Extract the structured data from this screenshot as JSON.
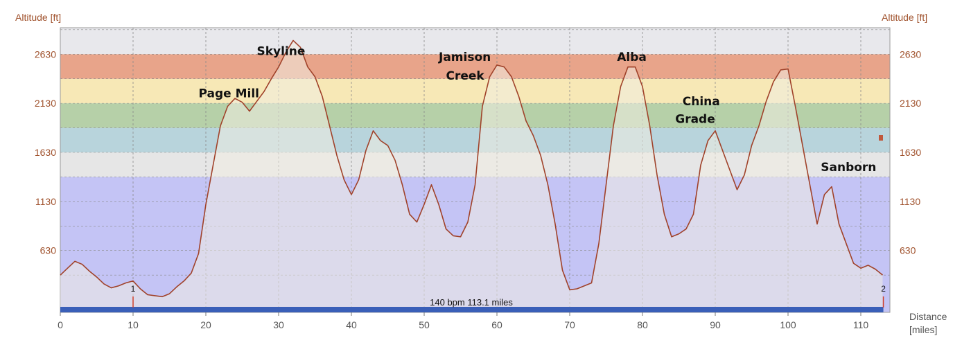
{
  "chart_data": {
    "type": "area",
    "ylabel": "Altitude [ft]",
    "xlabel": "Distance",
    "xlabel_unit": "[miles]",
    "xlim": [
      0,
      114
    ],
    "ylim": [
      0,
      2900
    ],
    "x_ticks": [
      0,
      10,
      20,
      30,
      40,
      50,
      60,
      70,
      80,
      90,
      100,
      110
    ],
    "y_ticks": [
      630,
      1130,
      1630,
      2130,
      2630
    ],
    "grid": true,
    "zones": [
      {
        "from": 0,
        "to": 1380,
        "color": "#c4c4f5"
      },
      {
        "from": 1380,
        "to": 1630,
        "color": "#e6e6e6"
      },
      {
        "from": 1630,
        "to": 1880,
        "color": "#b8d4dc"
      },
      {
        "from": 1880,
        "to": 2130,
        "color": "#b6d0a8"
      },
      {
        "from": 2130,
        "to": 2380,
        "color": "#f7e8b6"
      },
      {
        "from": 2380,
        "to": 2630,
        "color": "#e8a48a"
      },
      {
        "from": 2630,
        "to": 2900,
        "color": "#e8e8ec"
      }
    ],
    "profile": [
      [
        0,
        380
      ],
      [
        1,
        450
      ],
      [
        2,
        520
      ],
      [
        3,
        490
      ],
      [
        4,
        420
      ],
      [
        5,
        360
      ],
      [
        6,
        290
      ],
      [
        7,
        250
      ],
      [
        8,
        270
      ],
      [
        9,
        300
      ],
      [
        10,
        320
      ],
      [
        11,
        240
      ],
      [
        12,
        180
      ],
      [
        13,
        170
      ],
      [
        14,
        160
      ],
      [
        15,
        190
      ],
      [
        16,
        260
      ],
      [
        17,
        320
      ],
      [
        18,
        400
      ],
      [
        19,
        600
      ],
      [
        20,
        1100
      ],
      [
        21,
        1500
      ],
      [
        22,
        1900
      ],
      [
        23,
        2100
      ],
      [
        24,
        2180
      ],
      [
        25,
        2140
      ],
      [
        26,
        2050
      ],
      [
        27,
        2150
      ],
      [
        28,
        2250
      ],
      [
        29,
        2380
      ],
      [
        30,
        2500
      ],
      [
        31,
        2650
      ],
      [
        32,
        2770
      ],
      [
        33,
        2700
      ],
      [
        34,
        2500
      ],
      [
        35,
        2400
      ],
      [
        36,
        2200
      ],
      [
        37,
        1900
      ],
      [
        38,
        1600
      ],
      [
        39,
        1350
      ],
      [
        40,
        1200
      ],
      [
        41,
        1350
      ],
      [
        42,
        1650
      ],
      [
        43,
        1850
      ],
      [
        44,
        1750
      ],
      [
        45,
        1700
      ],
      [
        46,
        1550
      ],
      [
        47,
        1300
      ],
      [
        48,
        1000
      ],
      [
        49,
        920
      ],
      [
        50,
        1100
      ],
      [
        51,
        1300
      ],
      [
        52,
        1100
      ],
      [
        53,
        850
      ],
      [
        54,
        780
      ],
      [
        55,
        770
      ],
      [
        56,
        920
      ],
      [
        57,
        1300
      ],
      [
        58,
        2100
      ],
      [
        59,
        2400
      ],
      [
        60,
        2520
      ],
      [
        61,
        2500
      ],
      [
        62,
        2400
      ],
      [
        63,
        2200
      ],
      [
        64,
        1950
      ],
      [
        65,
        1800
      ],
      [
        66,
        1600
      ],
      [
        67,
        1300
      ],
      [
        68,
        900
      ],
      [
        69,
        430
      ],
      [
        70,
        230
      ],
      [
        71,
        240
      ],
      [
        72,
        270
      ],
      [
        73,
        300
      ],
      [
        74,
        700
      ],
      [
        75,
        1300
      ],
      [
        76,
        1900
      ],
      [
        77,
        2300
      ],
      [
        78,
        2500
      ],
      [
        79,
        2500
      ],
      [
        80,
        2300
      ],
      [
        81,
        1900
      ],
      [
        82,
        1400
      ],
      [
        83,
        1000
      ],
      [
        84,
        770
      ],
      [
        85,
        800
      ],
      [
        86,
        850
      ],
      [
        87,
        1000
      ],
      [
        88,
        1500
      ],
      [
        89,
        1750
      ],
      [
        90,
        1850
      ],
      [
        91,
        1650
      ],
      [
        92,
        1450
      ],
      [
        93,
        1250
      ],
      [
        94,
        1400
      ],
      [
        95,
        1700
      ],
      [
        96,
        1900
      ],
      [
        97,
        2150
      ],
      [
        98,
        2350
      ],
      [
        99,
        2470
      ],
      [
        100,
        2480
      ],
      [
        101,
        2100
      ],
      [
        102,
        1700
      ],
      [
        103,
        1300
      ],
      [
        104,
        900
      ],
      [
        105,
        1200
      ],
      [
        106,
        1280
      ],
      [
        107,
        900
      ],
      [
        108,
        700
      ],
      [
        109,
        500
      ],
      [
        110,
        450
      ],
      [
        111,
        480
      ],
      [
        112,
        440
      ],
      [
        113,
        380
      ]
    ],
    "annotations": [
      {
        "text": "Skyline",
        "x": 27,
        "y": 2620
      },
      {
        "text": "Page Mill",
        "x": 19,
        "y": 2190
      },
      {
        "text": "Jamison",
        "x": 52,
        "y": 2560
      },
      {
        "text": "Creek",
        "x": 53,
        "y": 2370
      },
      {
        "text": "Alba",
        "x": 76.5,
        "y": 2560
      },
      {
        "text": "China",
        "x": 85.5,
        "y": 2110
      },
      {
        "text": "Grade",
        "x": 84.5,
        "y": 1930
      },
      {
        "text": "Sanborn",
        "x": 104.5,
        "y": 1440
      }
    ],
    "markers": [
      {
        "label": "1",
        "x": 10.0
      },
      {
        "label": "2",
        "x": 113.1
      }
    ],
    "bottom_bar_text": "140 bpm 113.1 miles"
  },
  "colors": {
    "line": "#a0422a",
    "fill": "rgba(240,236,225,0.55)",
    "bottom_bar": "#3a5fb8",
    "grid": "#8a8a8a",
    "axis_text": "#a0522d"
  }
}
